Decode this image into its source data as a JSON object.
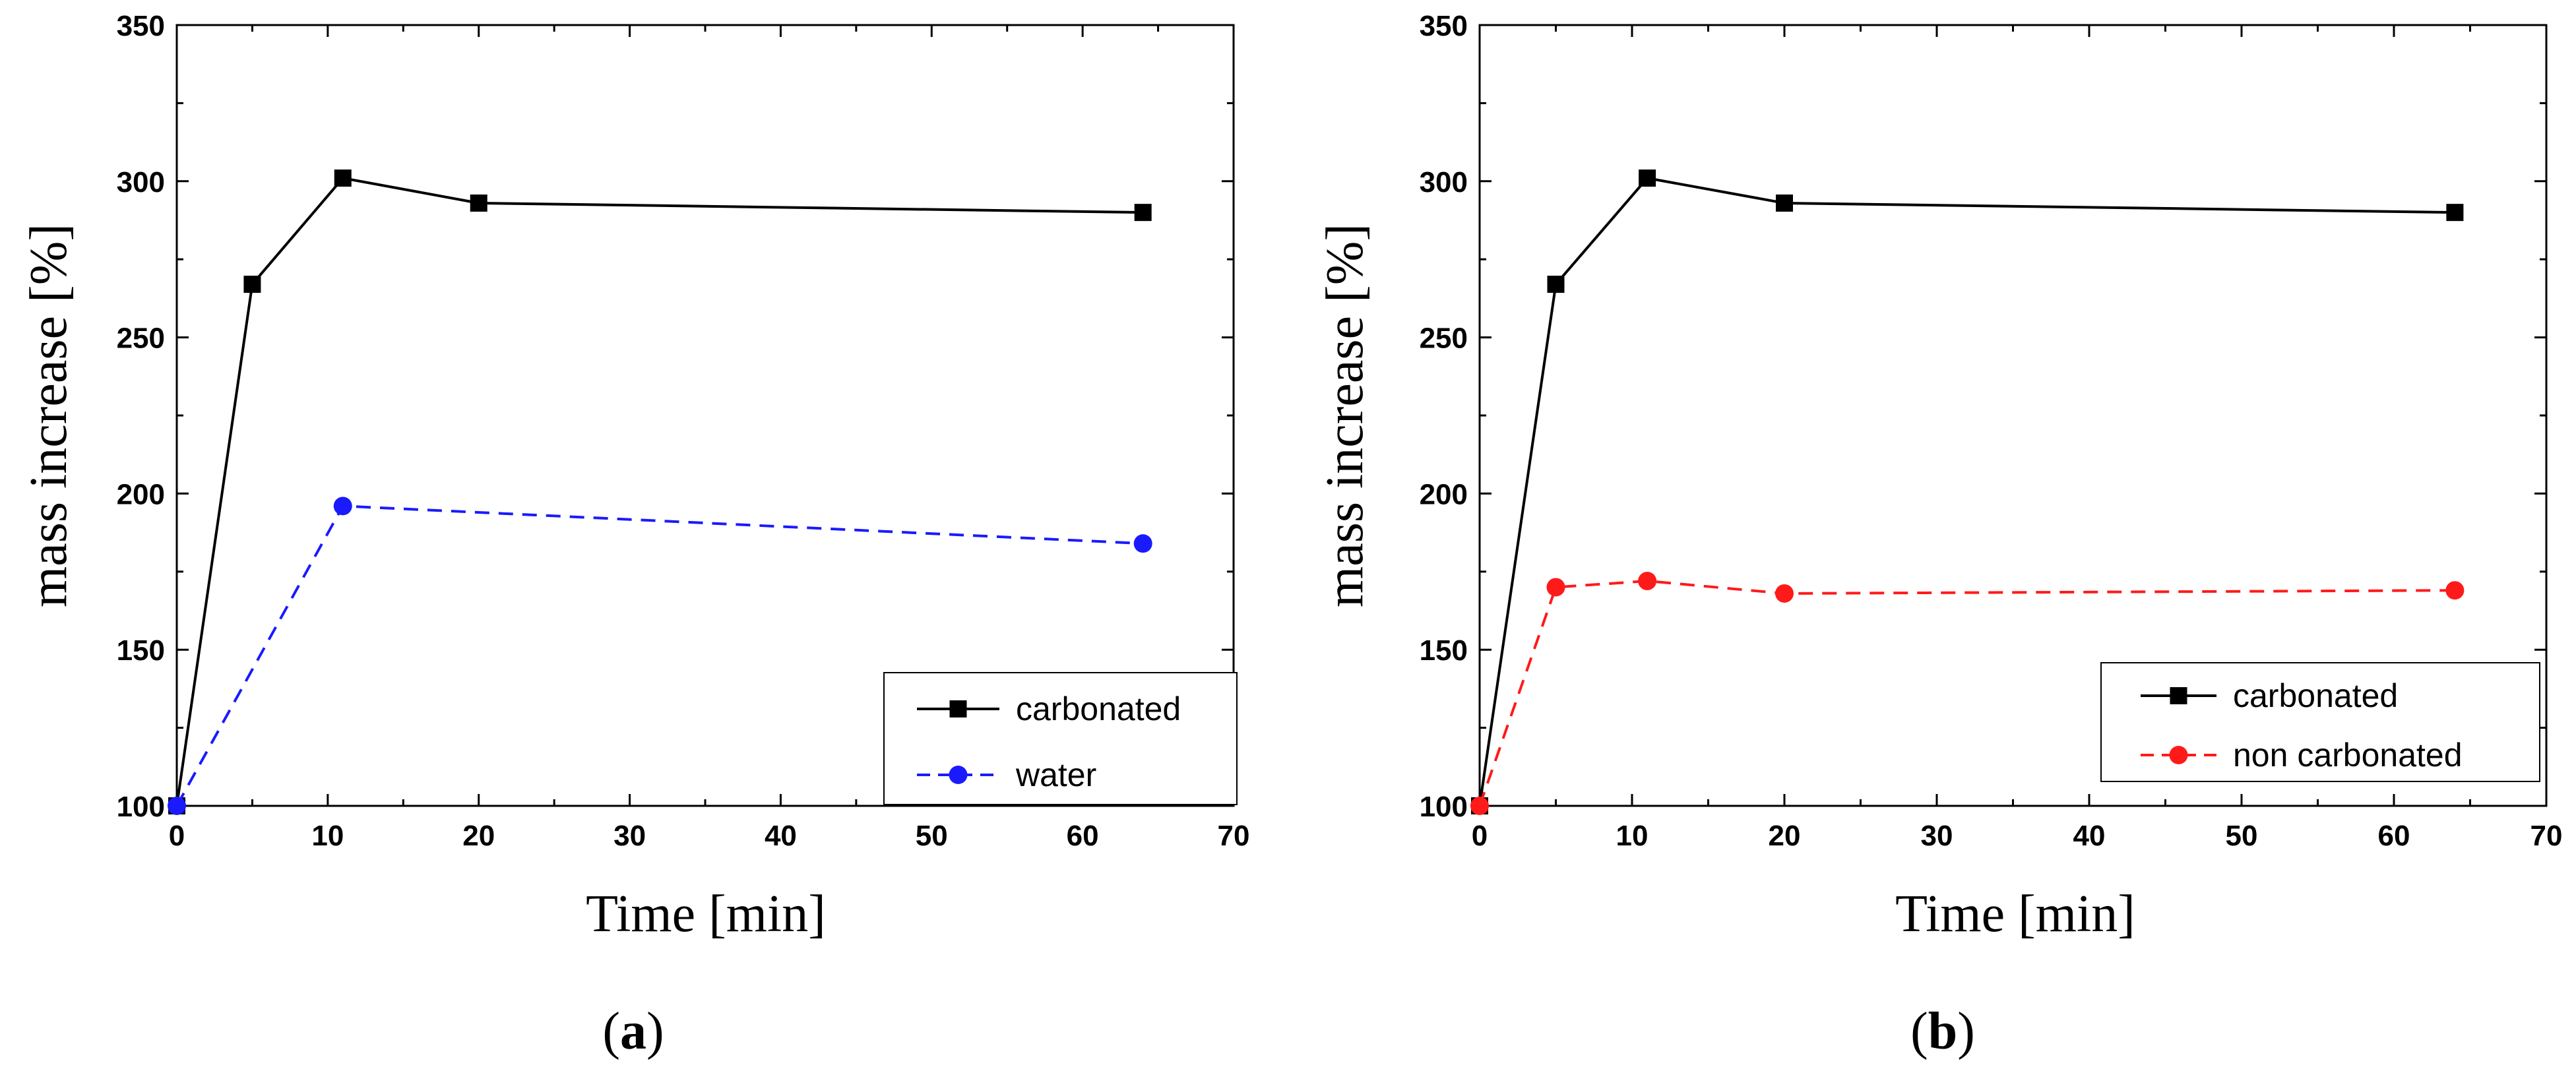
{
  "chart_data": [
    {
      "type": "line",
      "panel_label": "a",
      "panel_open": "(",
      "panel_close": ")",
      "xlabel": "Time [min]",
      "ylabel": "mass increase [%]",
      "xlim": [
        0,
        70
      ],
      "ylim": [
        100,
        350
      ],
      "x_ticks": [
        0,
        10,
        20,
        30,
        40,
        50,
        60,
        70
      ],
      "y_ticks": [
        100,
        150,
        200,
        250,
        300,
        350
      ],
      "legend_position": "bottom-right",
      "series": [
        {
          "name": "carbonated",
          "color": "#000000",
          "marker": "square",
          "dash": "solid",
          "x": [
            0,
            5,
            11,
            20,
            64
          ],
          "values": [
            100,
            267,
            301,
            293,
            290
          ]
        },
        {
          "name": "water",
          "color": "#1a1aff",
          "marker": "circle",
          "dash": "dashed",
          "x": [
            0,
            11,
            64
          ],
          "values": [
            100,
            196,
            184
          ]
        }
      ]
    },
    {
      "type": "line",
      "panel_label": "b",
      "panel_open": "(",
      "panel_close": ")",
      "xlabel": "Time [min]",
      "ylabel": "mass increase [%]",
      "xlim": [
        0,
        70
      ],
      "ylim": [
        100,
        350
      ],
      "x_ticks": [
        0,
        10,
        20,
        30,
        40,
        50,
        60,
        70
      ],
      "y_ticks": [
        100,
        150,
        200,
        250,
        300,
        350
      ],
      "legend_position": "bottom-right",
      "series": [
        {
          "name": "carbonated",
          "color": "#000000",
          "marker": "square",
          "dash": "solid",
          "x": [
            0,
            5,
            11,
            20,
            64
          ],
          "values": [
            100,
            267,
            301,
            293,
            290
          ]
        },
        {
          "name": "non carbonated",
          "color": "#ff1a1a",
          "marker": "circle",
          "dash": "dashed",
          "x": [
            0,
            5,
            11,
            20,
            64
          ],
          "values": [
            100,
            170,
            172,
            168,
            169
          ]
        }
      ]
    }
  ]
}
